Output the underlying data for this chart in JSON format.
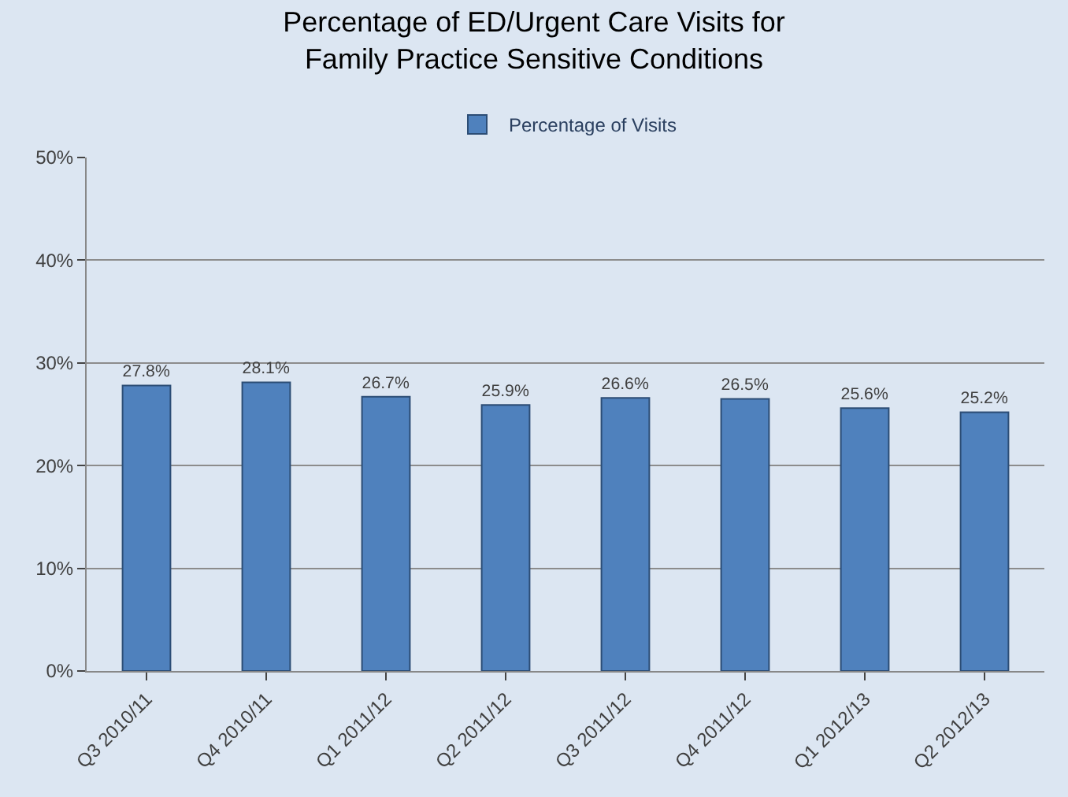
{
  "chart_data": {
    "type": "bar",
    "title": "Percentage of ED/Urgent Care Visits for\nFamily Practice Sensitive Conditions",
    "categories": [
      "Q3 2010/11",
      "Q4 2010/11",
      "Q1 2011/12",
      "Q2 2011/12",
      "Q3 2011/12",
      "Q4 2011/12",
      "Q1 2012/13",
      "Q2 2012/13"
    ],
    "series": [
      {
        "name": "Percentage of Visits",
        "color": "#4f81bd",
        "values": [
          27.8,
          28.1,
          26.7,
          25.9,
          26.6,
          26.5,
          25.6,
          25.2
        ],
        "value_labels": [
          "27.8%",
          "28.1%",
          "26.7%",
          "25.9%",
          "26.6%",
          "26.5%",
          "25.6%",
          "25.2%"
        ]
      }
    ],
    "ylim": [
      0,
      50
    ],
    "yticks": [
      {
        "value": 0,
        "label": "0%"
      },
      {
        "value": 10,
        "label": "10%"
      },
      {
        "value": 20,
        "label": "20%"
      },
      {
        "value": 30,
        "label": "30%"
      },
      {
        "value": 40,
        "label": "40%"
      },
      {
        "value": 50,
        "label": "50%"
      }
    ],
    "grid": "y",
    "legend": "top"
  }
}
